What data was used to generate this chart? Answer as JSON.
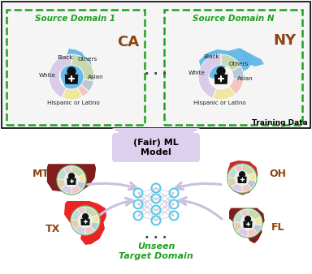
{
  "bg_color": "#ffffff",
  "training_box_edge": "#000000",
  "dashed_box_color": "#2ca02c",
  "source1_title": "Source Domain 1",
  "sourceN_title": "Source Domain N",
  "ca_label": "CA",
  "ny_label": "NY",
  "training_label": "Training Data",
  "fair_ml_label": "(Fair) ML\nModel",
  "unseen_label": "Unseen\nTarget Domain",
  "dots": ". . .",
  "ca_pie": [
    0.28,
    0.08,
    0.06,
    0.15,
    0.43
  ],
  "ny_pie": [
    0.17,
    0.1,
    0.12,
    0.17,
    0.44
  ],
  "ca_pie_colors": [
    "#c8d8b0",
    "#b8c8d8",
    "#f0c8c0",
    "#f0e8a0",
    "#d8cce8"
  ],
  "ny_pie_colors": [
    "#c8d8b0",
    "#b8c8d8",
    "#f0c8c0",
    "#f0e8a0",
    "#d8cce8"
  ],
  "pie_labels_ca": [
    "White",
    "Black",
    "Others",
    "Asian",
    "Hispanic or Latino"
  ],
  "pie_labels_ny": [
    "White",
    "Black",
    "Others",
    "Asian",
    "Hispanic or Latino"
  ],
  "ca_color": "#60b8e8",
  "ny_color": "#60b8e8",
  "mt_color": "#7a1010",
  "tx_color": "#ee1818",
  "oh_color": "#cc2020",
  "fl_color": "#7a1010",
  "network_node_color": "#50c8e8",
  "arrow_color": "#c8c0e0",
  "funnel_color": "#ddd0ee",
  "source_title_color": "#20a020",
  "ca_label_color": "#8B4513",
  "ny_label_color": "#8B4513",
  "fair_ml_color": "#000000",
  "unseen_color": "#20a020",
  "state_label_color": "#8B4513",
  "small_pie": [
    0.18,
    0.1,
    0.1,
    0.12,
    0.14,
    0.12,
    0.14,
    0.1
  ],
  "small_colors": [
    "#c8d8b0",
    "#f0e8a0",
    "#b8c8d8",
    "#f0c8c0",
    "#d8cce8",
    "#e0d0b0",
    "#c0dcd0",
    "#e8c8d0"
  ]
}
